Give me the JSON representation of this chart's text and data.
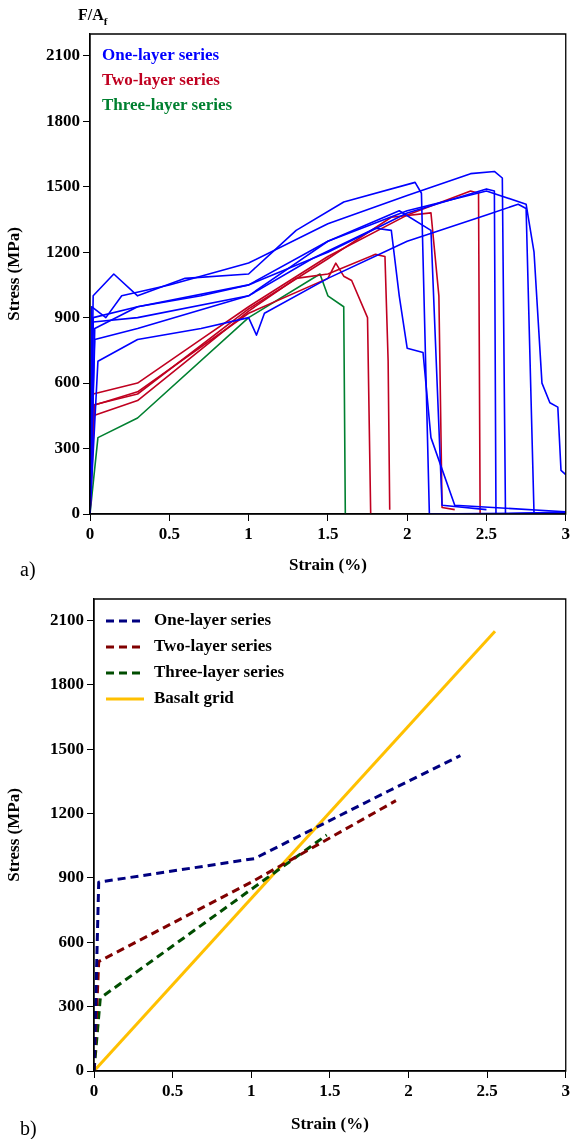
{
  "chart_data": [
    {
      "type": "line",
      "xlabel": "Strain (%)",
      "ylabel": "Stress (MPa)",
      "annotations": [
        "F/A$_{f}$",
        "a)"
      ],
      "legend": "top left",
      "xlim": [
        0,
        3
      ],
      "ylim": [
        0,
        2200
      ],
      "xticks": [
        0,
        0.5,
        1,
        1.5,
        2,
        2.5,
        3
      ],
      "yticks": [
        0,
        300,
        600,
        900,
        1200,
        1500,
        1800,
        2100
      ],
      "grid": false,
      "series": [
        {
          "name": "One-layer series",
          "color": "#0000ff",
          "x": [
            0,
            0.01,
            0.1,
            0.2,
            0.5,
            1.0,
            1.5,
            2.0,
            2.4,
            2.55,
            2.6,
            2.62,
            3
          ],
          "values": [
            0,
            950,
            900,
            1000,
            1050,
            1150,
            1330,
            1460,
            1560,
            1570,
            1540,
            0,
            10
          ]
        },
        {
          "color": "#0000ff",
          "x": [
            0,
            0.02,
            0.15,
            0.3,
            0.6,
            1.0,
            1.3,
            1.6,
            2.05,
            2.09,
            2.14,
            3
          ],
          "values": [
            0,
            1000,
            1100,
            1000,
            1080,
            1100,
            1300,
            1430,
            1520,
            1470,
            0,
            5
          ]
        },
        {
          "color": "#0000ff",
          "x": [
            0,
            0.03,
            0.3,
            0.7,
            1.0,
            1.5,
            2.0,
            2.5,
            2.75,
            2.8,
            2.85,
            2.9,
            2.95,
            2.97,
            3
          ],
          "values": [
            0,
            850,
            950,
            1000,
            1050,
            1250,
            1390,
            1480,
            1420,
            1200,
            600,
            510,
            490,
            200,
            180
          ]
        },
        {
          "color": "#0000ff",
          "x": [
            0,
            0.05,
            0.3,
            0.7,
            1.0,
            1.05,
            1.1,
            1.5,
            2.0,
            2.5,
            2.7,
            2.75,
            2.8
          ],
          "values": [
            0,
            700,
            800,
            850,
            900,
            820,
            920,
            1080,
            1250,
            1370,
            1420,
            1400,
            0
          ]
        },
        {
          "color": "#0000ff",
          "x": [
            0,
            0.02,
            0.3,
            1.0,
            1.4,
            1.8,
            1.9,
            1.95,
            2.0,
            2.1,
            2.15,
            2.3,
            3
          ],
          "values": [
            0,
            880,
            900,
            1000,
            1170,
            1310,
            1300,
            1000,
            760,
            740,
            350,
            40,
            10
          ]
        },
        {
          "color": "#0000ff",
          "x": [
            0,
            0.02,
            0.3,
            1.0,
            1.5,
            2.0,
            2.5,
            2.55,
            2.56
          ],
          "values": [
            0,
            900,
            950,
            1050,
            1200,
            1380,
            1490,
            1480,
            0
          ]
        },
        {
          "color": "#0000ff",
          "x": [
            0,
            0.03,
            0.3,
            1.0,
            1.5,
            1.95,
            2.15,
            2.22,
            2.5
          ],
          "values": [
            0,
            800,
            850,
            1000,
            1250,
            1390,
            1300,
            40,
            20
          ]
        },
        {
          "name": "Two-layer series",
          "color": "#c00020",
          "x": [
            0,
            0.02,
            0.3,
            0.7,
            1.0,
            1.5,
            2.0,
            2.4,
            2.45,
            2.46
          ],
          "values": [
            0,
            550,
            600,
            800,
            950,
            1180,
            1370,
            1480,
            1470,
            0
          ]
        },
        {
          "color": "#c00020",
          "x": [
            0,
            0.02,
            0.3,
            1.0,
            1.5,
            1.9,
            2.15,
            2.2,
            2.22,
            2.3
          ],
          "values": [
            0,
            500,
            550,
            940,
            1170,
            1360,
            1380,
            1000,
            30,
            20
          ]
        },
        {
          "color": "#c00020",
          "x": [
            0,
            0.02,
            0.3,
            1.0,
            1.3,
            1.5,
            1.8,
            1.86,
            1.88,
            1.89
          ],
          "values": [
            0,
            450,
            520,
            930,
            1080,
            1100,
            1190,
            1180,
            700,
            20
          ]
        },
        {
          "color": "#c00020",
          "x": [
            0,
            0.03,
            0.3,
            1.0,
            1.5,
            1.55,
            1.6,
            1.65,
            1.75,
            1.77
          ],
          "values": [
            0,
            500,
            560,
            920,
            1080,
            1150,
            1090,
            1070,
            900,
            0
          ]
        },
        {
          "name": "Three-layer series",
          "color": "#008030",
          "x": [
            0,
            0.05,
            0.3,
            1.0,
            1.45,
            1.5,
            1.6,
            1.61
          ],
          "values": [
            0,
            350,
            440,
            900,
            1100,
            1000,
            950,
            0
          ]
        }
      ]
    },
    {
      "type": "line",
      "xlabel": "Strain (%)",
      "ylabel": "Stress (MPa)",
      "annotations": [
        "b)"
      ],
      "legend": "top left",
      "xlim": [
        0,
        3
      ],
      "ylim": [
        0,
        2200
      ],
      "xticks": [
        0,
        0.5,
        1,
        1.5,
        2,
        2.5,
        3
      ],
      "yticks": [
        0,
        300,
        600,
        900,
        1200,
        1500,
        1800,
        2100
      ],
      "grid": false,
      "series": [
        {
          "name": "One-layer series",
          "color": "#000080",
          "line_style": "dashed",
          "x": [
            0,
            0.03,
            1.02,
            1.87,
            2.33
          ],
          "values": [
            0,
            880,
            990,
            1304,
            1470
          ]
        },
        {
          "name": "Two-layer series",
          "color": "#800000",
          "line_style": "dashed",
          "x": [
            0,
            0.03,
            1.0,
            1.92
          ],
          "values": [
            0,
            510,
            880,
            1260
          ]
        },
        {
          "name": "Three-layer series",
          "color": "#004d00",
          "line_style": "dashed",
          "x": [
            0,
            0.04,
            1.48
          ],
          "values": [
            0,
            340,
            1100
          ]
        },
        {
          "name": "Basalt grid",
          "color": "#ffc000",
          "line_style": "solid",
          "x": [
            0,
            2.55
          ],
          "values": [
            0,
            2050
          ]
        }
      ]
    }
  ]
}
